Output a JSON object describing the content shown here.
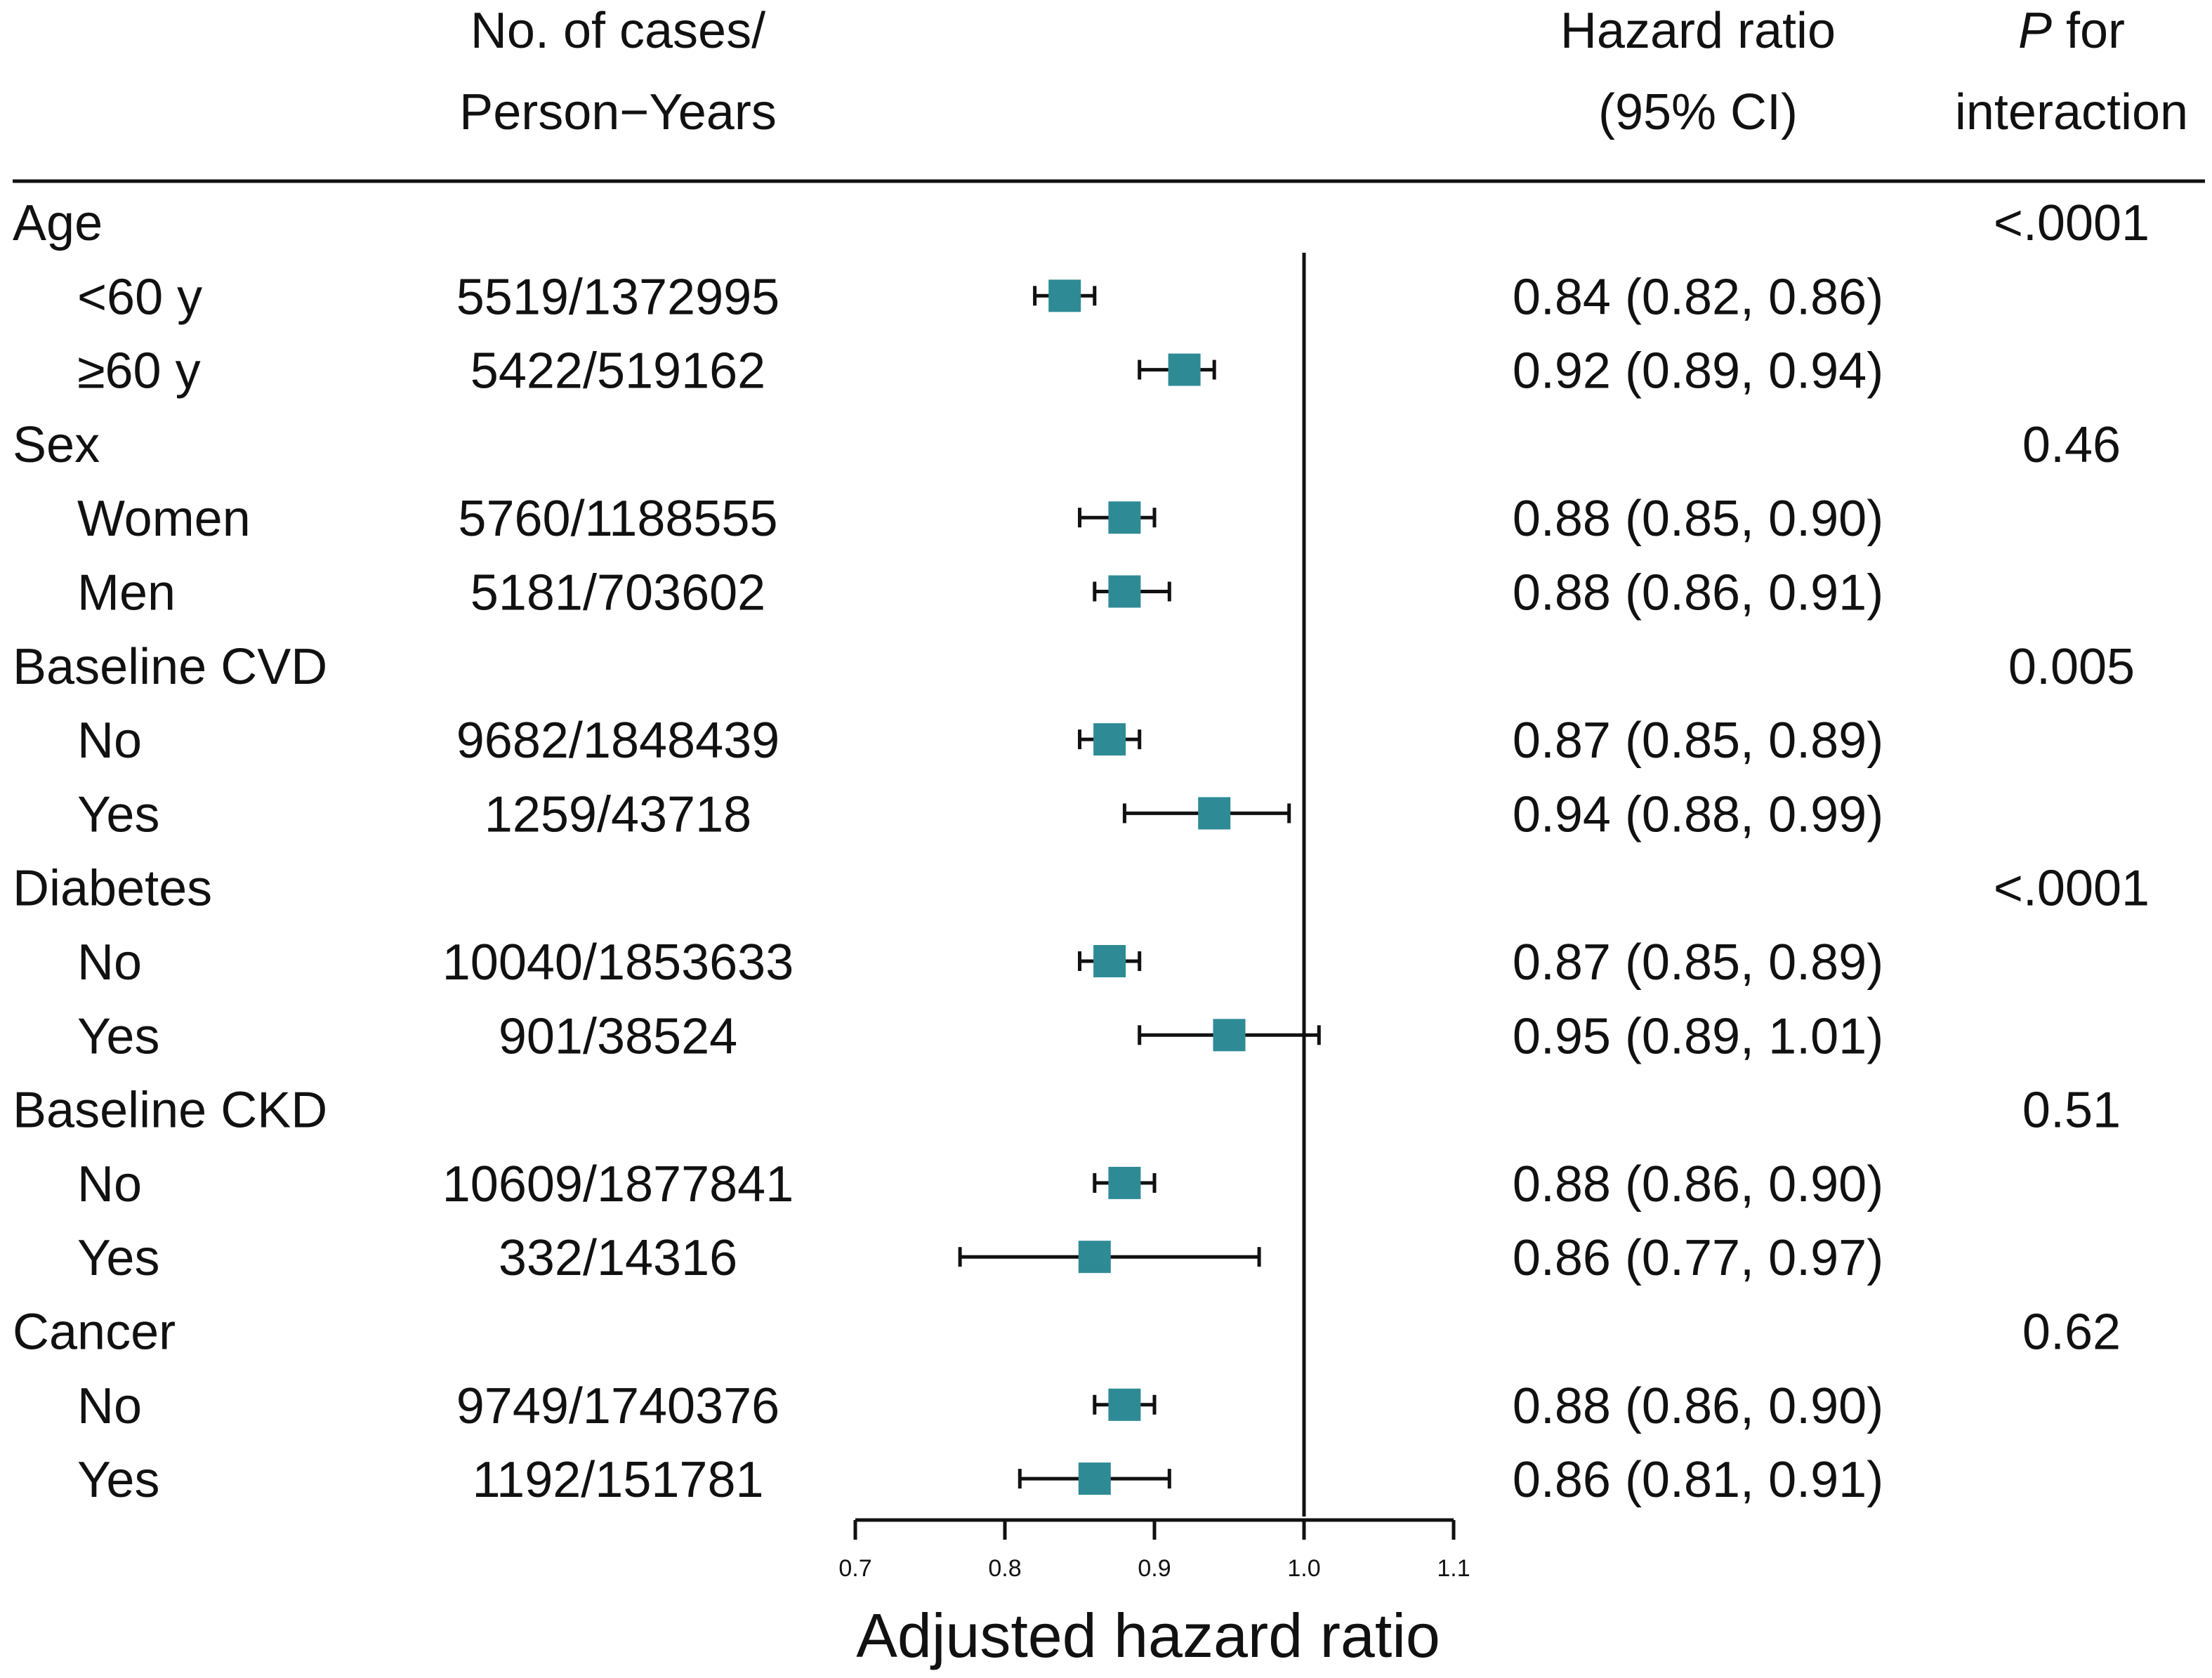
{
  "chart_data": {
    "type": "forest",
    "headers": {
      "cases_line1": "No. of cases/",
      "cases_line2": "Person−Years",
      "hr_line1": "Hazard ratio",
      "hr_line2": "(95% CI)",
      "p_line1_italic": "P",
      "p_line1_rest": " for",
      "p_line2": "interaction"
    },
    "xlabel": "Adjusted hazard ratio",
    "xlim": [
      0.7,
      1.1
    ],
    "xticks": [
      "0.7",
      "0.8",
      "0.9",
      "1.0",
      "1.1"
    ],
    "reference_line": 1.0,
    "marker_color": "#2e8b96",
    "rows": [
      {
        "kind": "group",
        "label": "Age",
        "p": "<.0001"
      },
      {
        "kind": "item",
        "label": "<60 y",
        "cases": "5519/1372995",
        "hr": 0.84,
        "lo": 0.82,
        "hi": 0.86,
        "hr_text": "0.84 (0.82, 0.86)"
      },
      {
        "kind": "item",
        "label": "≥60 y",
        "cases": "5422/519162",
        "hr": 0.92,
        "lo": 0.89,
        "hi": 0.94,
        "hr_text": "0.92 (0.89, 0.94)"
      },
      {
        "kind": "group",
        "label": "Sex",
        "p": "0.46"
      },
      {
        "kind": "item",
        "label": "Women",
        "cases": "5760/1188555",
        "hr": 0.88,
        "lo": 0.85,
        "hi": 0.9,
        "hr_text": "0.88 (0.85, 0.90)"
      },
      {
        "kind": "item",
        "label": "Men",
        "cases": "5181/703602",
        "hr": 0.88,
        "lo": 0.86,
        "hi": 0.91,
        "hr_text": "0.88 (0.86, 0.91)"
      },
      {
        "kind": "group",
        "label": "Baseline CVD",
        "p": "0.005"
      },
      {
        "kind": "item",
        "label": "No",
        "cases": "9682/1848439",
        "hr": 0.87,
        "lo": 0.85,
        "hi": 0.89,
        "hr_text": "0.87 (0.85, 0.89)"
      },
      {
        "kind": "item",
        "label": "Yes",
        "cases": "1259/43718",
        "hr": 0.94,
        "lo": 0.88,
        "hi": 0.99,
        "hr_text": "0.94 (0.88, 0.99)"
      },
      {
        "kind": "group",
        "label": "Diabetes",
        "p": "<.0001"
      },
      {
        "kind": "item",
        "label": "No",
        "cases": "10040/1853633",
        "hr": 0.87,
        "lo": 0.85,
        "hi": 0.89,
        "hr_text": "0.87 (0.85, 0.89)"
      },
      {
        "kind": "item",
        "label": "Yes",
        "cases": "901/38524",
        "hr": 0.95,
        "lo": 0.89,
        "hi": 1.01,
        "hr_text": "0.95 (0.89, 1.01)"
      },
      {
        "kind": "group",
        "label": "Baseline CKD",
        "p": "0.51"
      },
      {
        "kind": "item",
        "label": "No",
        "cases": "10609/1877841",
        "hr": 0.88,
        "lo": 0.86,
        "hi": 0.9,
        "hr_text": "0.88 (0.86, 0.90)"
      },
      {
        "kind": "item",
        "label": "Yes",
        "cases": "332/14316",
        "hr": 0.86,
        "lo": 0.77,
        "hi": 0.97,
        "hr_text": "0.86 (0.77, 0.97)"
      },
      {
        "kind": "group",
        "label": "Cancer",
        "p": "0.62"
      },
      {
        "kind": "item",
        "label": "No",
        "cases": "9749/1740376",
        "hr": 0.88,
        "lo": 0.86,
        "hi": 0.9,
        "hr_text": "0.88 (0.86, 0.90)"
      },
      {
        "kind": "item",
        "label": "Yes",
        "cases": "1192/151781",
        "hr": 0.86,
        "lo": 0.81,
        "hi": 0.91,
        "hr_text": "0.86 (0.81, 0.91)"
      }
    ]
  }
}
